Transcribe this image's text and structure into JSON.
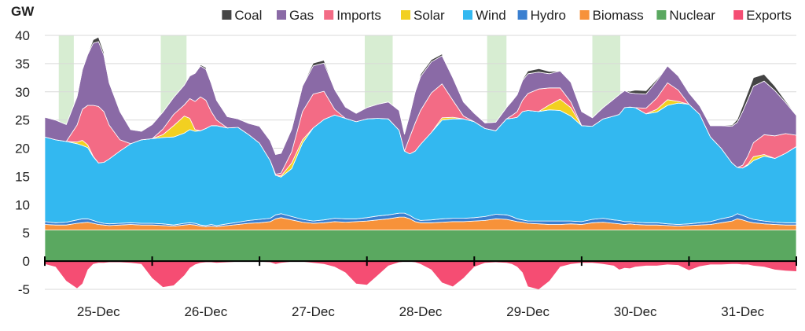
{
  "chart_data": {
    "type": "area",
    "stacked": true,
    "unit_label": "GW",
    "ylim": [
      -5,
      40
    ],
    "yticks": [
      -5,
      0,
      5,
      10,
      15,
      20,
      25,
      30,
      35,
      40
    ],
    "grid": true,
    "legend_position": "top-right",
    "x_start_day": "25-Dec",
    "x_end_day": "31-Dec",
    "x_category_labels": [
      "25-Dec",
      "26-Dec",
      "27-Dec",
      "28-Dec",
      "29-Dec",
      "30-Dec",
      "31-Dec"
    ],
    "x_time": [
      0,
      0.1,
      0.2,
      0.3,
      0.35,
      0.4,
      0.45,
      0.5,
      0.55,
      0.6,
      0.7,
      0.8,
      0.9,
      1.0,
      1.1,
      1.2,
      1.3,
      1.35,
      1.4,
      1.45,
      1.5,
      1.55,
      1.6,
      1.7,
      1.8,
      1.9,
      2.0,
      2.1,
      2.15,
      2.2,
      2.3,
      2.4,
      2.5,
      2.6,
      2.7,
      2.8,
      2.9,
      3.0,
      3.1,
      3.2,
      3.3,
      3.35,
      3.4,
      3.45,
      3.5,
      3.6,
      3.7,
      3.8,
      3.9,
      4.0,
      4.1,
      4.2,
      4.3,
      4.35,
      4.4,
      4.45,
      4.5,
      4.6,
      4.7,
      4.8,
      4.9,
      5.0,
      5.1,
      5.2,
      5.3,
      5.35,
      5.4,
      5.45,
      5.5,
      5.6,
      5.7,
      5.8,
      5.9,
      6.0,
      6.1,
      6.2,
      6.3,
      6.4,
      6.45,
      6.5,
      6.55,
      6.6,
      6.7,
      6.8,
      6.9,
      7.0
    ],
    "series": [
      {
        "name": "Nuclear",
        "color": "#5aa860",
        "values": [
          5.5,
          5.5,
          5.5,
          5.5,
          5.5,
          5.5,
          5.5,
          5.5,
          5.5,
          5.5,
          5.5,
          5.5,
          5.5,
          5.5,
          5.5,
          5.5,
          5.5,
          5.5,
          5.5,
          5.5,
          5.5,
          5.5,
          5.5,
          5.5,
          5.5,
          5.5,
          5.5,
          5.5,
          5.5,
          5.5,
          5.5,
          5.5,
          5.5,
          5.5,
          5.5,
          5.5,
          5.5,
          5.5,
          5.5,
          5.5,
          5.5,
          5.5,
          5.5,
          5.5,
          5.5,
          5.5,
          5.5,
          5.5,
          5.5,
          5.5,
          5.5,
          5.5,
          5.5,
          5.5,
          5.5,
          5.5,
          5.5,
          5.5,
          5.5,
          5.5,
          5.5,
          5.5,
          5.5,
          5.5,
          5.5,
          5.5,
          5.5,
          5.5,
          5.5,
          5.5,
          5.5,
          5.5,
          5.5,
          5.5,
          5.5,
          5.5,
          5.5,
          5.5,
          5.5,
          5.5,
          5.5,
          5.5,
          5.5,
          5.5,
          5.5,
          5.5
        ]
      },
      {
        "name": "Biomass",
        "color": "#f7923a",
        "values": [
          1.0,
          0.9,
          0.9,
          1.2,
          1.3,
          1.4,
          1.2,
          1.0,
          0.9,
          0.8,
          0.9,
          1.0,
          0.9,
          0.9,
          0.8,
          0.7,
          0.9,
          1.0,
          0.9,
          0.7,
          0.6,
          0.7,
          0.6,
          0.8,
          1.0,
          1.2,
          1.3,
          1.5,
          2.0,
          2.2,
          1.8,
          1.4,
          1.2,
          1.3,
          1.5,
          1.4,
          1.5,
          1.6,
          1.8,
          2.0,
          2.3,
          2.3,
          2.0,
          1.5,
          1.3,
          1.3,
          1.4,
          1.5,
          1.5,
          1.6,
          1.7,
          2.0,
          1.9,
          1.7,
          1.5,
          1.4,
          1.2,
          1.1,
          1.0,
          1.0,
          1.1,
          1.0,
          1.3,
          1.4,
          1.2,
          1.1,
          1.0,
          1.1,
          1.0,
          0.9,
          0.9,
          0.8,
          0.7,
          0.8,
          0.9,
          1.0,
          1.3,
          1.6,
          2.0,
          1.8,
          1.5,
          1.3,
          1.1,
          1.0,
          0.9,
          0.9
        ]
      },
      {
        "name": "Hydro",
        "color": "#3a7fd0",
        "values": [
          0.5,
          0.4,
          0.5,
          0.6,
          0.7,
          0.6,
          0.5,
          0.4,
          0.3,
          0.3,
          0.3,
          0.3,
          0.3,
          0.3,
          0.3,
          0.2,
          0.3,
          0.3,
          0.3,
          0.2,
          0.2,
          0.3,
          0.2,
          0.3,
          0.4,
          0.5,
          0.6,
          0.6,
          0.7,
          0.7,
          0.6,
          0.5,
          0.4,
          0.5,
          0.6,
          0.6,
          0.5,
          0.6,
          0.7,
          0.7,
          0.7,
          0.7,
          0.6,
          0.5,
          0.4,
          0.5,
          0.6,
          0.6,
          0.6,
          0.6,
          0.7,
          0.8,
          0.8,
          0.7,
          0.5,
          0.4,
          0.4,
          0.5,
          0.6,
          0.6,
          0.5,
          0.5,
          0.6,
          0.7,
          0.6,
          0.6,
          0.5,
          0.4,
          0.4,
          0.4,
          0.4,
          0.3,
          0.3,
          0.3,
          0.4,
          0.5,
          0.7,
          0.8,
          0.9,
          0.8,
          0.7,
          0.6,
          0.5,
          0.4,
          0.4,
          0.4
        ]
      },
      {
        "name": "Wind",
        "color": "#33b8f0",
        "values": [
          15.0,
          14.7,
          14.3,
          13.5,
          13.0,
          12.6,
          11.3,
          10.5,
          10.8,
          11.5,
          12.8,
          14.0,
          14.8,
          15.0,
          15.3,
          15.6,
          16.0,
          16.5,
          16.3,
          16.7,
          17.2,
          17.5,
          17.7,
          17.0,
          16.8,
          15.2,
          13.5,
          10.2,
          7.0,
          6.5,
          8.5,
          13.5,
          16.5,
          17.8,
          18.3,
          17.8,
          17.2,
          17.5,
          17.3,
          17.0,
          14.7,
          11.0,
          10.9,
          12.0,
          13.5,
          15.5,
          17.5,
          17.6,
          17.6,
          17.0,
          15.6,
          14.8,
          17.0,
          17.4,
          18.0,
          19.2,
          19.6,
          19.4,
          19.7,
          19.6,
          18.6,
          17.0,
          16.5,
          17.6,
          18.4,
          18.8,
          20.2,
          20.3,
          20.3,
          19.3,
          19.6,
          21.0,
          21.5,
          21.2,
          19.2,
          15.0,
          12.5,
          9.5,
          8.2,
          8.4,
          9.3,
          10.4,
          11.5,
          11.3,
          12.3,
          13.5
        ]
      },
      {
        "name": "Solar",
        "color": "#f2d021",
        "values": [
          0,
          0,
          0,
          0.3,
          0.9,
          0.5,
          0.1,
          0,
          0,
          0,
          0,
          0,
          0,
          0,
          0.5,
          2.0,
          3.0,
          2.0,
          0.3,
          0,
          0,
          0,
          0,
          0,
          0,
          0,
          0,
          0,
          0,
          0.2,
          1.0,
          0.6,
          0,
          0,
          0,
          0,
          0,
          0,
          0,
          0,
          0,
          0,
          0,
          0,
          0,
          0,
          0.4,
          0.3,
          0,
          0,
          0,
          0,
          0,
          0,
          0,
          0,
          0,
          0,
          0.9,
          2.0,
          1.5,
          0,
          0,
          0,
          0,
          0,
          0,
          0,
          0,
          0,
          0.5,
          1.0,
          0.3,
          0,
          0,
          0,
          0,
          0,
          0,
          0,
          0.2,
          0.7,
          0.3,
          0,
          0,
          0
        ]
      },
      {
        "name": "Imports",
        "color": "#f36b85",
        "values": [
          0,
          0,
          0,
          3.0,
          5.5,
          7.0,
          9.0,
          10.0,
          9.0,
          6.0,
          2.0,
          0,
          0,
          0,
          1.0,
          2.0,
          2.0,
          3.5,
          5.0,
          6.0,
          5.0,
          2.5,
          1.0,
          0,
          0,
          0,
          0,
          0,
          0.2,
          0.5,
          2.0,
          5.0,
          6.0,
          5.0,
          1.0,
          0,
          0,
          0,
          0,
          0,
          0,
          0,
          3.0,
          5.0,
          6.0,
          7.0,
          6.0,
          3.0,
          0.5,
          0,
          0,
          0,
          0,
          0.5,
          1.0,
          2.0,
          3.0,
          4.0,
          3.0,
          2.0,
          1.0,
          0,
          0,
          0,
          0,
          0,
          0,
          0,
          0,
          1.0,
          2.0,
          3.0,
          2.0,
          0,
          0,
          0,
          0,
          0,
          0,
          0.5,
          1.5,
          2.5,
          3.5,
          4.0,
          3.5,
          2.0
        ]
      },
      {
        "name": "Gas",
        "color": "#8a6aa6",
        "values": [
          3.5,
          3.5,
          3.0,
          5.0,
          7.0,
          9.0,
          11.0,
          11.5,
          10.0,
          7.5,
          5.0,
          2.5,
          1.5,
          2.5,
          3.0,
          3.0,
          3.5,
          4.0,
          5.0,
          5.5,
          5.5,
          5.0,
          3.5,
          2.0,
          1.5,
          2.0,
          3.0,
          3.5,
          3.5,
          3.5,
          4.0,
          4.5,
          5.0,
          5.0,
          3.5,
          2.0,
          1.5,
          2.0,
          2.5,
          3.0,
          3.5,
          3.0,
          4.0,
          5.5,
          6.0,
          5.5,
          5.0,
          4.0,
          2.5,
          1.5,
          1.0,
          1.5,
          2.0,
          2.5,
          3.0,
          3.5,
          3.5,
          3.0,
          2.5,
          3.0,
          3.5,
          2.5,
          1.5,
          2.0,
          3.0,
          3.5,
          3.0,
          2.5,
          2.5,
          2.5,
          3.0,
          3.0,
          2.5,
          2.0,
          1.5,
          2.0,
          4.0,
          6.5,
          8.0,
          9.5,
          10.0,
          10.0,
          9.5,
          8.0,
          5.5,
          3.5
        ]
      },
      {
        "name": "Coal",
        "color": "#444444",
        "values": [
          0,
          0,
          0,
          0,
          0,
          0.1,
          0.6,
          0.8,
          0.5,
          0.1,
          0,
          0,
          0,
          0,
          0,
          0,
          0,
          0,
          0,
          0.2,
          0.3,
          0.2,
          0,
          0,
          0,
          0,
          0,
          0,
          0,
          0,
          0,
          0.1,
          0.5,
          0.5,
          0.1,
          0,
          0,
          0,
          0,
          0,
          0,
          0,
          0,
          0.2,
          0.4,
          0.4,
          0.3,
          0,
          0,
          0,
          0,
          0,
          0,
          0,
          0,
          0.2,
          0.5,
          0.6,
          0.4,
          0,
          0,
          0,
          0,
          0,
          0,
          0,
          0,
          0.3,
          0.6,
          0.6,
          0.3,
          0,
          0,
          0,
          0,
          0,
          0,
          0.2,
          0.5,
          1.0,
          1.3,
          1.5,
          1.2,
          0.8,
          0.3,
          0.1
        ]
      },
      {
        "name": "Exports",
        "color": "#f54d73",
        "negative": true,
        "values": [
          0.5,
          1.0,
          3.5,
          4.8,
          4.0,
          1.5,
          0.5,
          0.3,
          0.3,
          0.2,
          0.2,
          0.3,
          0.5,
          3.0,
          4.6,
          4.3,
          2.5,
          1.2,
          0.6,
          0.3,
          0.2,
          0.2,
          0.3,
          0.2,
          0.1,
          0.1,
          0.1,
          0.2,
          0.5,
          0.3,
          0.1,
          0.1,
          0.3,
          0.5,
          1.0,
          2.0,
          4.0,
          4.2,
          2.5,
          0.8,
          0.2,
          0.1,
          0.1,
          0.2,
          0.5,
          1.5,
          3.8,
          4.5,
          3.0,
          1.0,
          0.3,
          0.2,
          0.3,
          0.5,
          1.0,
          2.0,
          4.5,
          5.0,
          3.5,
          1.0,
          0.5,
          0.3,
          0.3,
          0.5,
          0.8,
          1.5,
          1.2,
          1.3,
          1.0,
          0.8,
          0.8,
          0.6,
          0.7,
          1.6,
          0.9,
          0.6,
          0.6,
          0.5,
          0.5,
          0.6,
          0.6,
          0.8,
          1.0,
          1.5,
          1.7,
          1.8
        ]
      }
    ],
    "shaded_bands_days": [
      [
        0.13,
        0.27
      ],
      [
        1.08,
        1.32
      ],
      [
        2.98,
        3.24
      ],
      [
        4.12,
        4.3
      ],
      [
        5.1,
        5.36
      ]
    ],
    "shade_color": "#d7edd2",
    "legend": [
      "Coal",
      "Gas",
      "Imports",
      "Solar",
      "Wind",
      "Hydro",
      "Biomass",
      "Nuclear",
      "Exports"
    ]
  }
}
